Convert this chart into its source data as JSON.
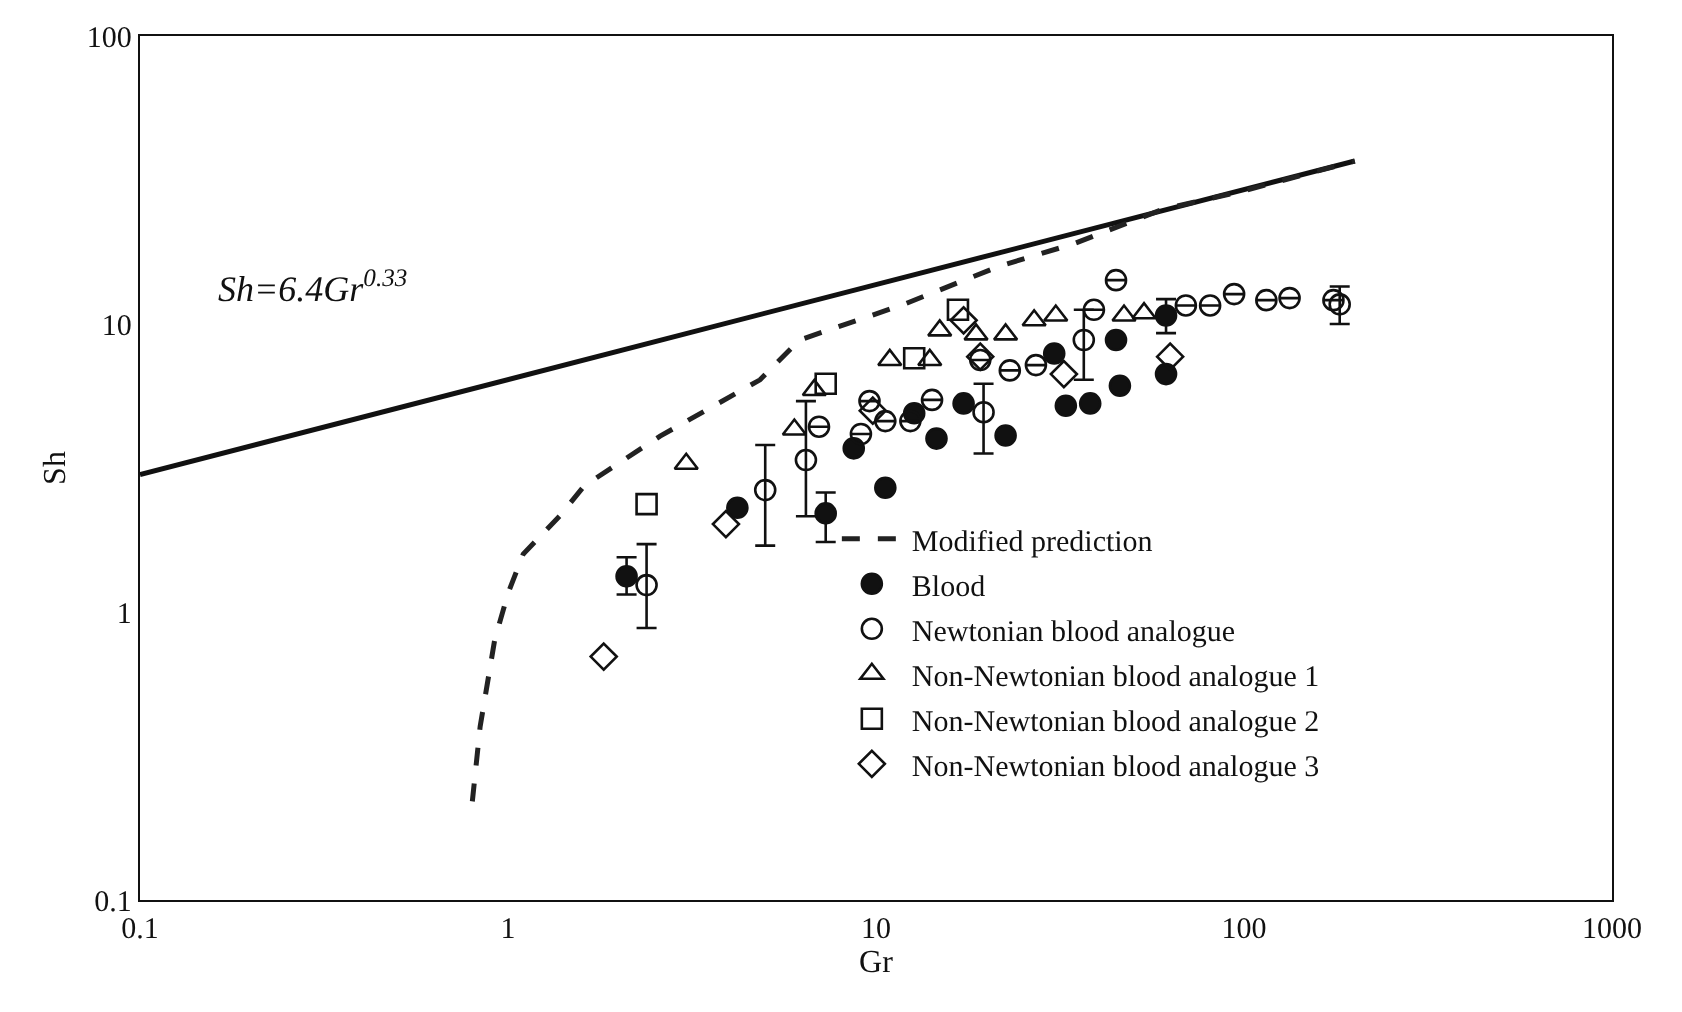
{
  "chart_data": {
    "type": "scatter",
    "xlabel": "Gr",
    "ylabel": "Sh",
    "log": "xy",
    "grid": false,
    "legend": "bottom right",
    "xlim": [
      0.1,
      1000
    ],
    "xticks": [
      0.1,
      1,
      10,
      100,
      1000
    ],
    "ylim": [
      0.1,
      100
    ],
    "yticks": [
      0.1,
      1,
      10,
      100
    ],
    "annotations": [
      "Sh=6.4Gr$^{0.33}$"
    ],
    "series": [
      {
        "type": "line",
        "color": "#111111",
        "line_style": "solid",
        "marker": "none",
        "x": [
          0.1,
          200
        ],
        "values": [
          3.0,
          36.8
        ]
      },
      {
        "type": "line",
        "name": "Modified prediction",
        "color": "#222222",
        "line_style": "dashed",
        "marker": "none",
        "x": [
          0.8,
          0.84,
          0.92,
          1.0,
          1.1,
          1.38,
          1.61,
          2.59,
          4.84,
          6.2,
          11.9,
          21.7,
          34.5,
          60,
          100,
          200
        ],
        "values": [
          0.22,
          0.4,
          0.8,
          1.16,
          1.59,
          2.15,
          2.74,
          4.08,
          6.4,
          8.8,
          11.7,
          15.9,
          19,
          25,
          29,
          36.8
        ]
      },
      {
        "name": "Blood",
        "color": "#111111",
        "marker": "circle",
        "x": [
          2.1,
          4.2,
          7.3,
          8.7,
          10.6,
          12.7,
          14.6,
          17.3,
          22.5,
          30.5,
          32.8,
          38.2,
          44.9,
          46,
          61.4,
          61.4
        ],
        "values": [
          1.33,
          2.3,
          2.2,
          3.7,
          2.7,
          4.9,
          4.0,
          5.3,
          4.1,
          7.9,
          5.2,
          5.3,
          8.8,
          6.1,
          6.7,
          10.7
        ],
        "errors": [
          [
            1.15,
            1.55
          ],
          null,
          [
            1.75,
            2.6
          ],
          null,
          null,
          null,
          null,
          null,
          null,
          null,
          null,
          null,
          null,
          null,
          null,
          [
            9.3,
            12.2
          ]
        ]
      },
      {
        "name": "Newtonian blood analogue",
        "color": "#111111",
        "marker": "circle",
        "x": [
          2.38,
          5.0,
          6.45,
          7.0,
          9.1,
          9.6,
          10.6,
          12.4,
          14.2,
          19.6,
          19.2,
          23.1,
          27.2,
          36.7,
          39.1,
          44.9,
          69.5,
          80.9,
          94,
          115,
          133,
          175,
          182
        ],
        "values": [
          1.24,
          2.65,
          3.37,
          4.4,
          4.15,
          5.4,
          4.6,
          4.6,
          5.45,
          4.94,
          7.5,
          6.9,
          7.2,
          8.8,
          11.2,
          14.2,
          11.6,
          11.6,
          12.7,
          12.1,
          12.3,
          12.1,
          11.7
        ],
        "errors": [
          [
            0.88,
            1.72
          ],
          [
            1.7,
            3.8
          ],
          [
            2.15,
            5.4
          ],
          null,
          null,
          null,
          null,
          null,
          null,
          [
            3.55,
            6.2
          ],
          null,
          null,
          null,
          [
            6.4,
            11.2
          ],
          null,
          null,
          null,
          null,
          null,
          null,
          null,
          null,
          [
            10,
            13.5
          ]
        ]
      },
      {
        "name": "Non-Newtonian blood analogue 1",
        "color": "#111111",
        "marker": "triangle",
        "x": [
          3.05,
          6.0,
          6.8,
          10.9,
          14.0,
          14.9,
          18.7,
          22.5,
          26.9,
          30.8,
          47.2,
          53.5
        ],
        "values": [
          3.27,
          4.3,
          5.9,
          7.5,
          7.5,
          9.5,
          9.2,
          9.2,
          10.3,
          10.7,
          10.7,
          10.9
        ]
      },
      {
        "name": "Non-Newtonian blood analogue 2",
        "color": "#111111",
        "marker": "square",
        "x": [
          2.38,
          7.3,
          12.7,
          16.7
        ],
        "values": [
          2.37,
          6.2,
          7.6,
          11.2
        ]
      },
      {
        "name": "Non-Newtonian blood analogue 3",
        "color": "#111111",
        "marker": "diamond",
        "x": [
          1.82,
          3.91,
          9.8,
          17.3,
          19.2,
          32.4,
          63
        ],
        "values": [
          0.7,
          2.02,
          5.0,
          10.3,
          7.7,
          6.7,
          7.7
        ]
      }
    ]
  }
}
